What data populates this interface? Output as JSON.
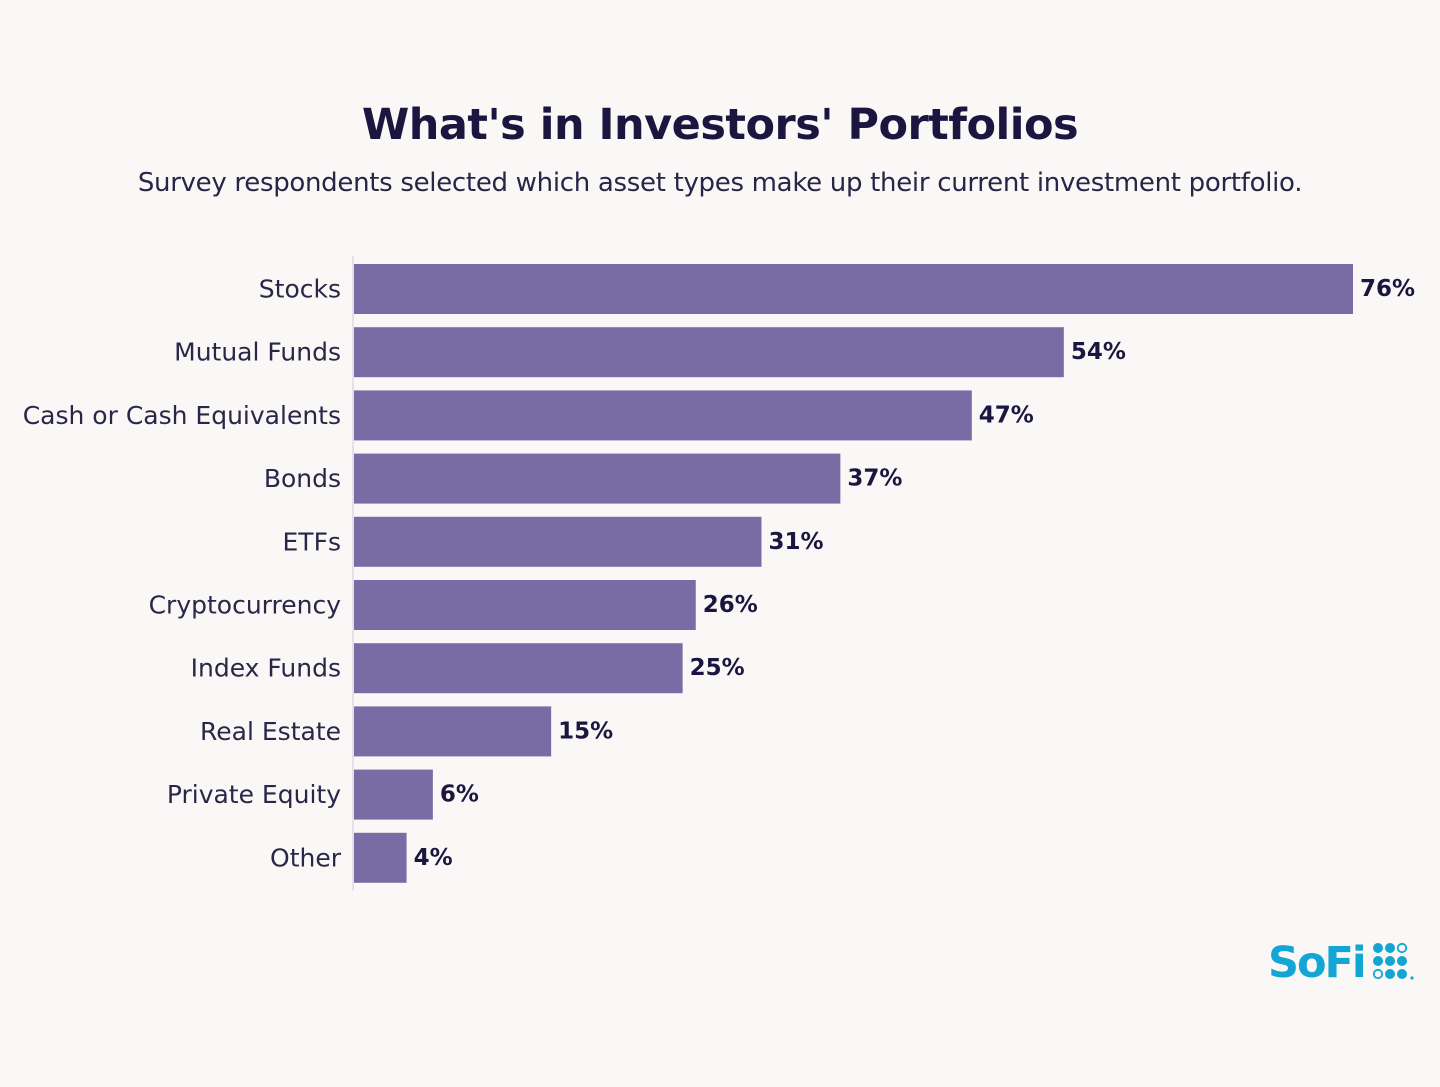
{
  "chart_data": {
    "type": "bar",
    "orientation": "horizontal",
    "title": "What's in Investors' Portfolios",
    "subtitle": "Survey respondents selected which asset types make up their current investment portfolio.",
    "categories": [
      "Stocks",
      "Mutual Funds",
      "Cash or Cash Equivalents",
      "Bonds",
      "ETFs",
      "Cryptocurrency",
      "Index Funds",
      "Real Estate",
      "Private Equity",
      "Other"
    ],
    "values": [
      76,
      54,
      47,
      37,
      31,
      26,
      25,
      15,
      6,
      4
    ],
    "value_labels": [
      "76%",
      "54%",
      "47%",
      "37%",
      "31%",
      "26%",
      "25%",
      "15%",
      "6%",
      "4%"
    ],
    "xlim": [
      0,
      76
    ],
    "grid": false,
    "legend": "none",
    "bar_color": "#786ca4"
  },
  "brand": {
    "name": "SoFi",
    "color": "#13a5d3",
    "icon": "sofi-dots-icon"
  },
  "colors": {
    "background": "#f9f8f6",
    "title": "#1b1540",
    "axis_line": "#dedbe4"
  }
}
